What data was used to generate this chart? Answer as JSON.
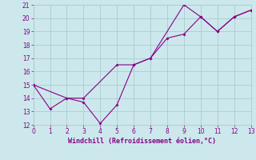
{
  "xlabel": "Windchill (Refroidissement éolien,°C)",
  "ylabel": "",
  "xlim": [
    0,
    13
  ],
  "ylim": [
    12,
    21
  ],
  "yticks": [
    12,
    13,
    14,
    15,
    16,
    17,
    18,
    19,
    20,
    21
  ],
  "xticks": [
    0,
    1,
    2,
    3,
    4,
    5,
    6,
    7,
    8,
    9,
    10,
    11,
    12,
    13
  ],
  "bg_color": "#cce8ec",
  "line_color": "#880088",
  "grid_color": "#aacccc",
  "line1_x": [
    0,
    1,
    2,
    3,
    4,
    5,
    6,
    7,
    8,
    9,
    10,
    11,
    12,
    13
  ],
  "line1_y": [
    15,
    13.2,
    14.0,
    13.7,
    12.1,
    13.5,
    16.5,
    17.0,
    18.5,
    18.8,
    20.1,
    19.0,
    20.1,
    20.6
  ],
  "line2_x": [
    0,
    2,
    3,
    5,
    6,
    7,
    9,
    10,
    11,
    12,
    13
  ],
  "line2_y": [
    15,
    14.0,
    14.0,
    16.5,
    16.5,
    17.0,
    21.0,
    20.1,
    19.0,
    20.1,
    20.6
  ]
}
